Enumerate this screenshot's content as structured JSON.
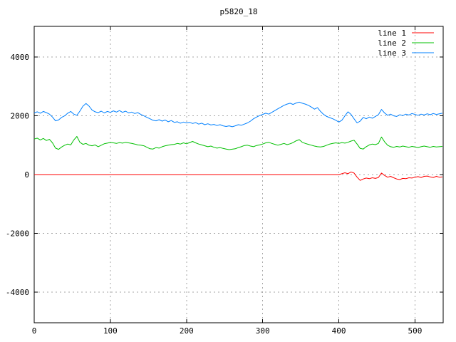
{
  "window": {
    "title": "p5820_18"
  },
  "colors": {
    "background": "#ffffff",
    "border": "#000000",
    "grid": "#a6a6a6",
    "text": "#000000"
  },
  "chart_data": {
    "type": "line",
    "title": "p5820_18",
    "xlabel": "",
    "ylabel": "",
    "xlim": [
      0,
      537
    ],
    "ylim": [
      -5050,
      5050
    ],
    "x_ticks": [
      0,
      100,
      200,
      300,
      400,
      500
    ],
    "y_ticks": [
      -4000,
      -2000,
      0,
      2000,
      4000
    ],
    "grid": true,
    "grid_style": "dotted",
    "legend_position": "top-right-inside",
    "x_start": 0,
    "x_step": 4,
    "series": [
      {
        "name": "line 1",
        "color": "#ff0000",
        "values": [
          0,
          0,
          0,
          0,
          0,
          0,
          0,
          0,
          0,
          0,
          0,
          0,
          0,
          0,
          0,
          0,
          0,
          0,
          0,
          0,
          0,
          0,
          0,
          0,
          0,
          0,
          0,
          0,
          0,
          0,
          0,
          0,
          0,
          0,
          0,
          0,
          0,
          0,
          0,
          0,
          0,
          0,
          0,
          0,
          0,
          0,
          0,
          0,
          0,
          0,
          0,
          0,
          0,
          0,
          0,
          0,
          0,
          0,
          0,
          0,
          0,
          0,
          0,
          0,
          0,
          0,
          0,
          0,
          0,
          0,
          0,
          0,
          0,
          0,
          0,
          0,
          0,
          0,
          0,
          0,
          0,
          0,
          0,
          0,
          0,
          0,
          0,
          0,
          0,
          0,
          0,
          0,
          0,
          0,
          0,
          0,
          0,
          0,
          0,
          0,
          0,
          30,
          60,
          30,
          90,
          50,
          -90,
          -200,
          -150,
          -120,
          -140,
          -110,
          -130,
          -100,
          50,
          -30,
          -90,
          -60,
          -110,
          -150,
          -170,
          -130,
          -140,
          -110,
          -120,
          -90,
          -70,
          -100,
          -60,
          -50,
          -80,
          -100,
          -60,
          -90,
          -80
        ]
      },
      {
        "name": "line 2",
        "color": "#00c000",
        "values": [
          1210,
          1240,
          1180,
          1230,
          1160,
          1200,
          1080,
          900,
          860,
          940,
          1000,
          1040,
          1010,
          1180,
          1300,
          1100,
          1030,
          1060,
          1000,
          980,
          1010,
          950,
          1000,
          1050,
          1070,
          1095,
          1080,
          1060,
          1090,
          1070,
          1100,
          1080,
          1060,
          1040,
          1010,
          1000,
          980,
          930,
          880,
          870,
          920,
          900,
          950,
          980,
          1000,
          1020,
          1030,
          1060,
          1040,
          1080,
          1050,
          1090,
          1130,
          1080,
          1040,
          1010,
          980,
          950,
          970,
          930,
          900,
          920,
          890,
          870,
          850,
          865,
          880,
          920,
          950,
          990,
          1000,
          970,
          950,
          990,
          1010,
          1040,
          1080,
          1100,
          1060,
          1030,
          1000,
          1030,
          1060,
          1020,
          1050,
          1090,
          1150,
          1190,
          1100,
          1060,
          1030,
          1000,
          970,
          950,
          940,
          960,
          1000,
          1040,
          1060,
          1080,
          1060,
          1090,
          1070,
          1100,
          1140,
          1170,
          1040,
          890,
          870,
          950,
          1010,
          1040,
          1020,
          1060,
          1280,
          1120,
          1000,
          950,
          930,
          960,
          940,
          970,
          950,
          930,
          960,
          940,
          920,
          950,
          970,
          950,
          930,
          960,
          940,
          950,
          960
        ]
      },
      {
        "name": "line 3",
        "color": "#0080ff",
        "values": [
          2100,
          2140,
          2090,
          2150,
          2110,
          2060,
          1960,
          1830,
          1860,
          1950,
          2000,
          2090,
          2150,
          2060,
          2020,
          2160,
          2330,
          2420,
          2330,
          2200,
          2140,
          2110,
          2160,
          2100,
          2150,
          2120,
          2170,
          2130,
          2180,
          2120,
          2160,
          2100,
          2130,
          2080,
          2110,
          2050,
          2000,
          1950,
          1900,
          1850,
          1830,
          1870,
          1820,
          1860,
          1800,
          1840,
          1780,
          1800,
          1750,
          1790,
          1760,
          1780,
          1740,
          1770,
          1720,
          1750,
          1700,
          1730,
          1690,
          1710,
          1670,
          1700,
          1660,
          1640,
          1660,
          1630,
          1660,
          1700,
          1680,
          1720,
          1760,
          1820,
          1900,
          1960,
          2010,
          2050,
          2090,
          2060,
          2120,
          2180,
          2240,
          2300,
          2360,
          2400,
          2430,
          2390,
          2440,
          2470,
          2430,
          2400,
          2360,
          2300,
          2230,
          2280,
          2150,
          2050,
          1980,
          1940,
          1900,
          1850,
          1790,
          1850,
          2000,
          2140,
          2050,
          1900,
          1760,
          1820,
          1950,
          1900,
          1960,
          1920,
          1980,
          2040,
          2220,
          2100,
          2020,
          2060,
          2000,
          1980,
          2040,
          2010,
          2060,
          2030,
          2080,
          2050,
          2020,
          2060,
          2030,
          2070,
          2040,
          2080,
          2050,
          2070,
          2090
        ]
      }
    ],
    "legend": {
      "entries": [
        "line 1",
        "line 2",
        "line 3"
      ]
    }
  }
}
